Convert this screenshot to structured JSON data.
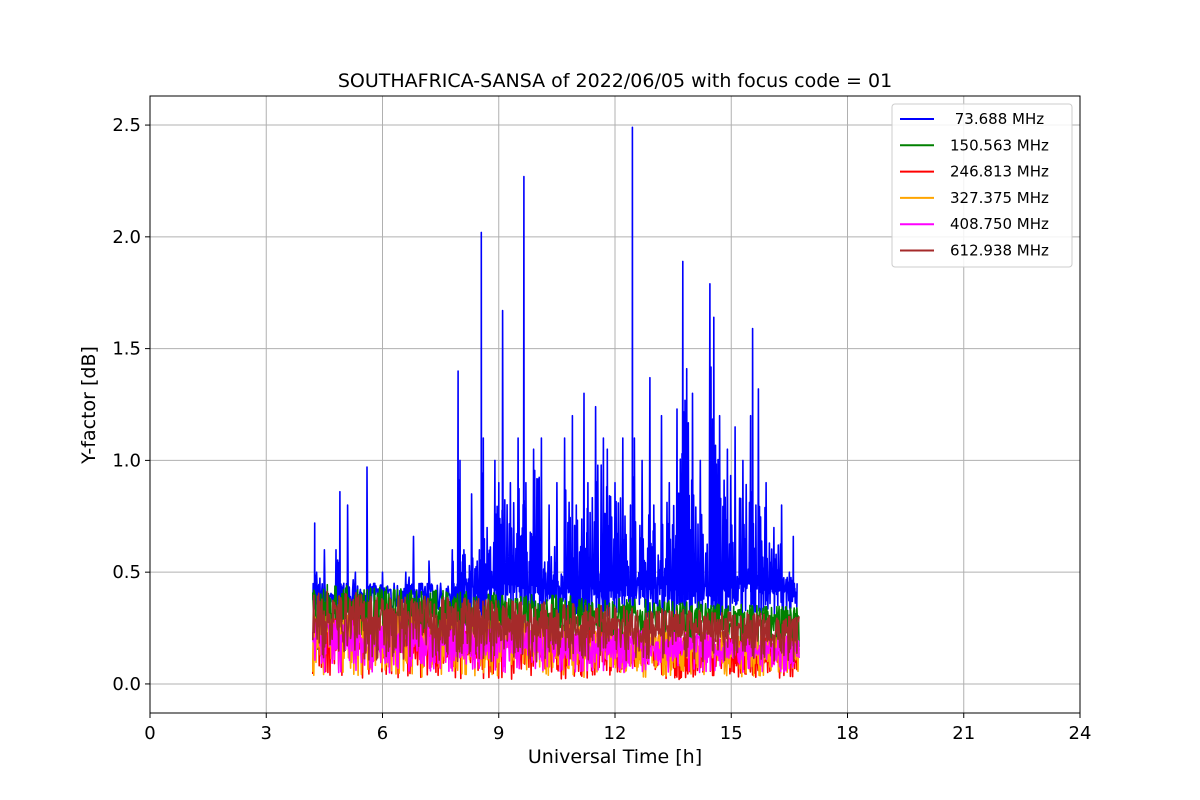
{
  "chart_data": {
    "type": "line",
    "title": "SOUTHAFRICA-SANSA of 2022/06/05 with focus code = 01",
    "xlabel": "Universal Time [h]",
    "ylabel": "Y-factor [dB]",
    "xlim": [
      0,
      24
    ],
    "ylim": [
      -0.13,
      2.63
    ],
    "xticks": [
      0,
      3,
      6,
      9,
      12,
      15,
      18,
      21,
      24
    ],
    "xtick_labels": [
      "0",
      "3",
      "6",
      "9",
      "12",
      "15",
      "18",
      "21",
      "24"
    ],
    "yticks": [
      0.0,
      0.5,
      1.0,
      1.5,
      2.0,
      2.5
    ],
    "ytick_labels": [
      "0.0",
      "0.5",
      "1.0",
      "1.5",
      "2.0",
      "2.5"
    ],
    "grid": true,
    "legend_position": "top-right",
    "series": [
      {
        "name": " 73.688 MHz",
        "color": "#0000ff",
        "x": [
          4.2,
          4.25,
          4.3,
          4.5,
          4.7,
          4.8,
          4.9,
          5.0,
          5.1,
          5.3,
          5.5,
          5.6,
          5.8,
          6.0,
          6.3,
          6.6,
          6.8,
          7.0,
          7.2,
          7.5,
          7.8,
          7.95,
          8.0,
          8.1,
          8.3,
          8.5,
          8.55,
          8.6,
          8.7,
          8.9,
          9.0,
          9.1,
          9.3,
          9.5,
          9.65,
          9.7,
          9.9,
          10.1,
          10.3,
          10.5,
          10.7,
          10.9,
          11.0,
          11.2,
          11.3,
          11.5,
          11.7,
          11.8,
          12.0,
          12.2,
          12.4,
          12.45,
          12.5,
          12.7,
          12.9,
          13.0,
          13.2,
          13.4,
          13.6,
          13.75,
          13.85,
          14.0,
          14.2,
          14.45,
          14.55,
          14.7,
          14.9,
          15.1,
          15.3,
          15.5,
          15.55,
          15.7,
          15.9,
          16.1,
          16.3,
          16.5,
          16.6,
          16.7
        ],
        "y": [
          0.4,
          0.72,
          0.5,
          0.6,
          0.4,
          0.6,
          0.86,
          0.45,
          0.8,
          0.5,
          0.4,
          0.97,
          0.45,
          0.5,
          0.45,
          0.5,
          0.66,
          0.45,
          0.55,
          0.45,
          0.6,
          1.4,
          1.0,
          0.6,
          0.85,
          0.6,
          2.02,
          1.1,
          0.7,
          1.0,
          0.9,
          1.67,
          0.9,
          1.1,
          2.27,
          0.9,
          1.05,
          1.1,
          0.8,
          0.9,
          1.1,
          1.2,
          0.8,
          1.3,
          0.9,
          1.24,
          1.1,
          1.05,
          0.9,
          1.1,
          0.8,
          2.49,
          1.1,
          1.0,
          1.37,
          0.8,
          1.2,
          0.9,
          1.23,
          1.89,
          1.41,
          1.3,
          1.0,
          1.79,
          1.64,
          1.2,
          1.05,
          1.15,
          1.0,
          1.2,
          1.59,
          1.32,
          0.9,
          0.7,
          0.8,
          0.5,
          0.66,
          0.45
        ]
      },
      {
        "name": "150.563 MHz",
        "color": "#008000",
        "y_band": [
          0.15,
          0.45
        ],
        "x_range": [
          4.2,
          16.75
        ]
      },
      {
        "name": "246.813 MHz",
        "color": "#ff0000",
        "y_band": [
          0.02,
          0.3
        ],
        "x_range": [
          4.2,
          16.75
        ]
      },
      {
        "name": "327.375 MHz",
        "color": "#ffa500",
        "y_band": [
          0.03,
          0.32
        ],
        "x_range": [
          4.2,
          16.75
        ]
      },
      {
        "name": "408.750 MHz",
        "color": "#ff00ff",
        "y_band": [
          0.05,
          0.3
        ],
        "x_range": [
          4.2,
          16.75
        ]
      },
      {
        "name": "612.938 MHz",
        "color": "#a52a2a",
        "y_band": [
          0.1,
          0.42
        ],
        "x_range": [
          4.2,
          16.75
        ]
      }
    ]
  }
}
